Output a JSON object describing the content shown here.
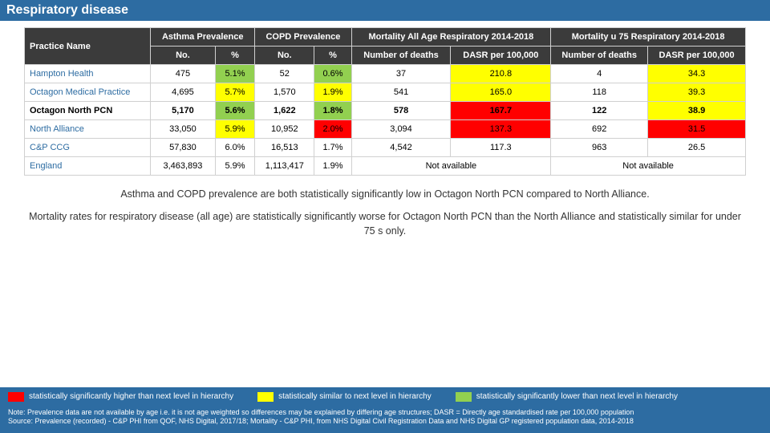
{
  "page_title": "Respiratory disease",
  "colors": {
    "header_bg": "#2d6ca2",
    "header_text": "#ffffff",
    "table_header_bg": "#3b3b3b",
    "table_header_text": "#ffffff",
    "row_name_text": "#2d6ca2",
    "border": "#d0d0d0",
    "red": "#ff0000",
    "yellow": "#ffff00",
    "green": "#92d050"
  },
  "table": {
    "practice_header": "Practice Name",
    "groups": [
      {
        "label": "Asthma Prevalence",
        "sub": [
          "No.",
          "%"
        ]
      },
      {
        "label": "COPD Prevalence",
        "sub": [
          "No.",
          "%"
        ]
      },
      {
        "label": "Mortality All Age Respiratory 2014-2018",
        "sub": [
          "Number of deaths",
          "DASR per 100,000"
        ]
      },
      {
        "label": "Mortality u 75 Respiratory 2014-2018",
        "sub": [
          "Number of deaths",
          "DASR per 100,000"
        ]
      }
    ],
    "rows": [
      {
        "name": "Hampton Health",
        "bold": false,
        "cells": [
          {
            "v": "475",
            "c": null
          },
          {
            "v": "5.1%",
            "c": "green"
          },
          {
            "v": "52",
            "c": null
          },
          {
            "v": "0.6%",
            "c": "green"
          },
          {
            "v": "37",
            "c": null
          },
          {
            "v": "210.8",
            "c": "yellow"
          },
          {
            "v": "4",
            "c": null
          },
          {
            "v": "34.3",
            "c": "yellow"
          }
        ]
      },
      {
        "name": "Octagon Medical Practice",
        "bold": false,
        "cells": [
          {
            "v": "4,695",
            "c": null
          },
          {
            "v": "5.7%",
            "c": "yellow"
          },
          {
            "v": "1,570",
            "c": null
          },
          {
            "v": "1.9%",
            "c": "yellow"
          },
          {
            "v": "541",
            "c": null
          },
          {
            "v": "165.0",
            "c": "yellow"
          },
          {
            "v": "118",
            "c": null
          },
          {
            "v": "39.3",
            "c": "yellow"
          }
        ]
      },
      {
        "name": "Octagon North PCN",
        "bold": true,
        "cells": [
          {
            "v": "5,170",
            "c": null
          },
          {
            "v": "5.6%",
            "c": "green"
          },
          {
            "v": "1,622",
            "c": null
          },
          {
            "v": "1.8%",
            "c": "green"
          },
          {
            "v": "578",
            "c": null
          },
          {
            "v": "167.7",
            "c": "red"
          },
          {
            "v": "122",
            "c": null
          },
          {
            "v": "38.9",
            "c": "yellow"
          }
        ]
      },
      {
        "name": "North Alliance",
        "bold": false,
        "cells": [
          {
            "v": "33,050",
            "c": null
          },
          {
            "v": "5.9%",
            "c": "yellow"
          },
          {
            "v": "10,952",
            "c": null
          },
          {
            "v": "2.0%",
            "c": "red"
          },
          {
            "v": "3,094",
            "c": null
          },
          {
            "v": "137.3",
            "c": "red"
          },
          {
            "v": "692",
            "c": null
          },
          {
            "v": "31.5",
            "c": "red"
          }
        ]
      },
      {
        "name": "C&P CCG",
        "bold": false,
        "cells": [
          {
            "v": "57,830",
            "c": null
          },
          {
            "v": "6.0%",
            "c": null
          },
          {
            "v": "16,513",
            "c": null
          },
          {
            "v": "1.7%",
            "c": null
          },
          {
            "v": "4,542",
            "c": null
          },
          {
            "v": "117.3",
            "c": null
          },
          {
            "v": "963",
            "c": null
          },
          {
            "v": "26.5",
            "c": null
          }
        ]
      },
      {
        "name": "England",
        "bold": false,
        "cells": [
          {
            "v": "3,463,893",
            "c": null
          },
          {
            "v": "5.9%",
            "c": null
          },
          {
            "v": "1,113,417",
            "c": null
          },
          {
            "v": "1.9%",
            "c": null
          },
          {
            "v": "Not available",
            "c": null,
            "span": 2
          },
          {
            "v": "Not available",
            "c": null,
            "span": 2
          }
        ]
      }
    ]
  },
  "commentary": [
    "Asthma and COPD prevalence are both statistically significantly low in Octagon North PCN compared to North Alliance.",
    "Mortality rates for respiratory disease (all age) are statistically significantly worse for Octagon North PCN than the North Alliance and statistically similar for under 75 s only."
  ],
  "legend": [
    {
      "color": "red",
      "label": "statistically significantly higher than next level in hierarchy"
    },
    {
      "color": "yellow",
      "label": "statistically similar to next level in hierarchy"
    },
    {
      "color": "green",
      "label": "statistically significantly lower than next level in hierarchy"
    }
  ],
  "footnote_lines": [
    "Note: Prevalence data are not available by age i.e. it is not age weighted so differences may be explained by differing age structures; DASR = Directly age standardised rate per 100,000 population",
    "Source: Prevalence (recorded) - C&P PHI from QOF, NHS Digital, 2017/18;  Mortality - C&P PHI, from NHS Digital Civil Registration Data and NHS Digital GP registered population data, 2014-2018"
  ]
}
